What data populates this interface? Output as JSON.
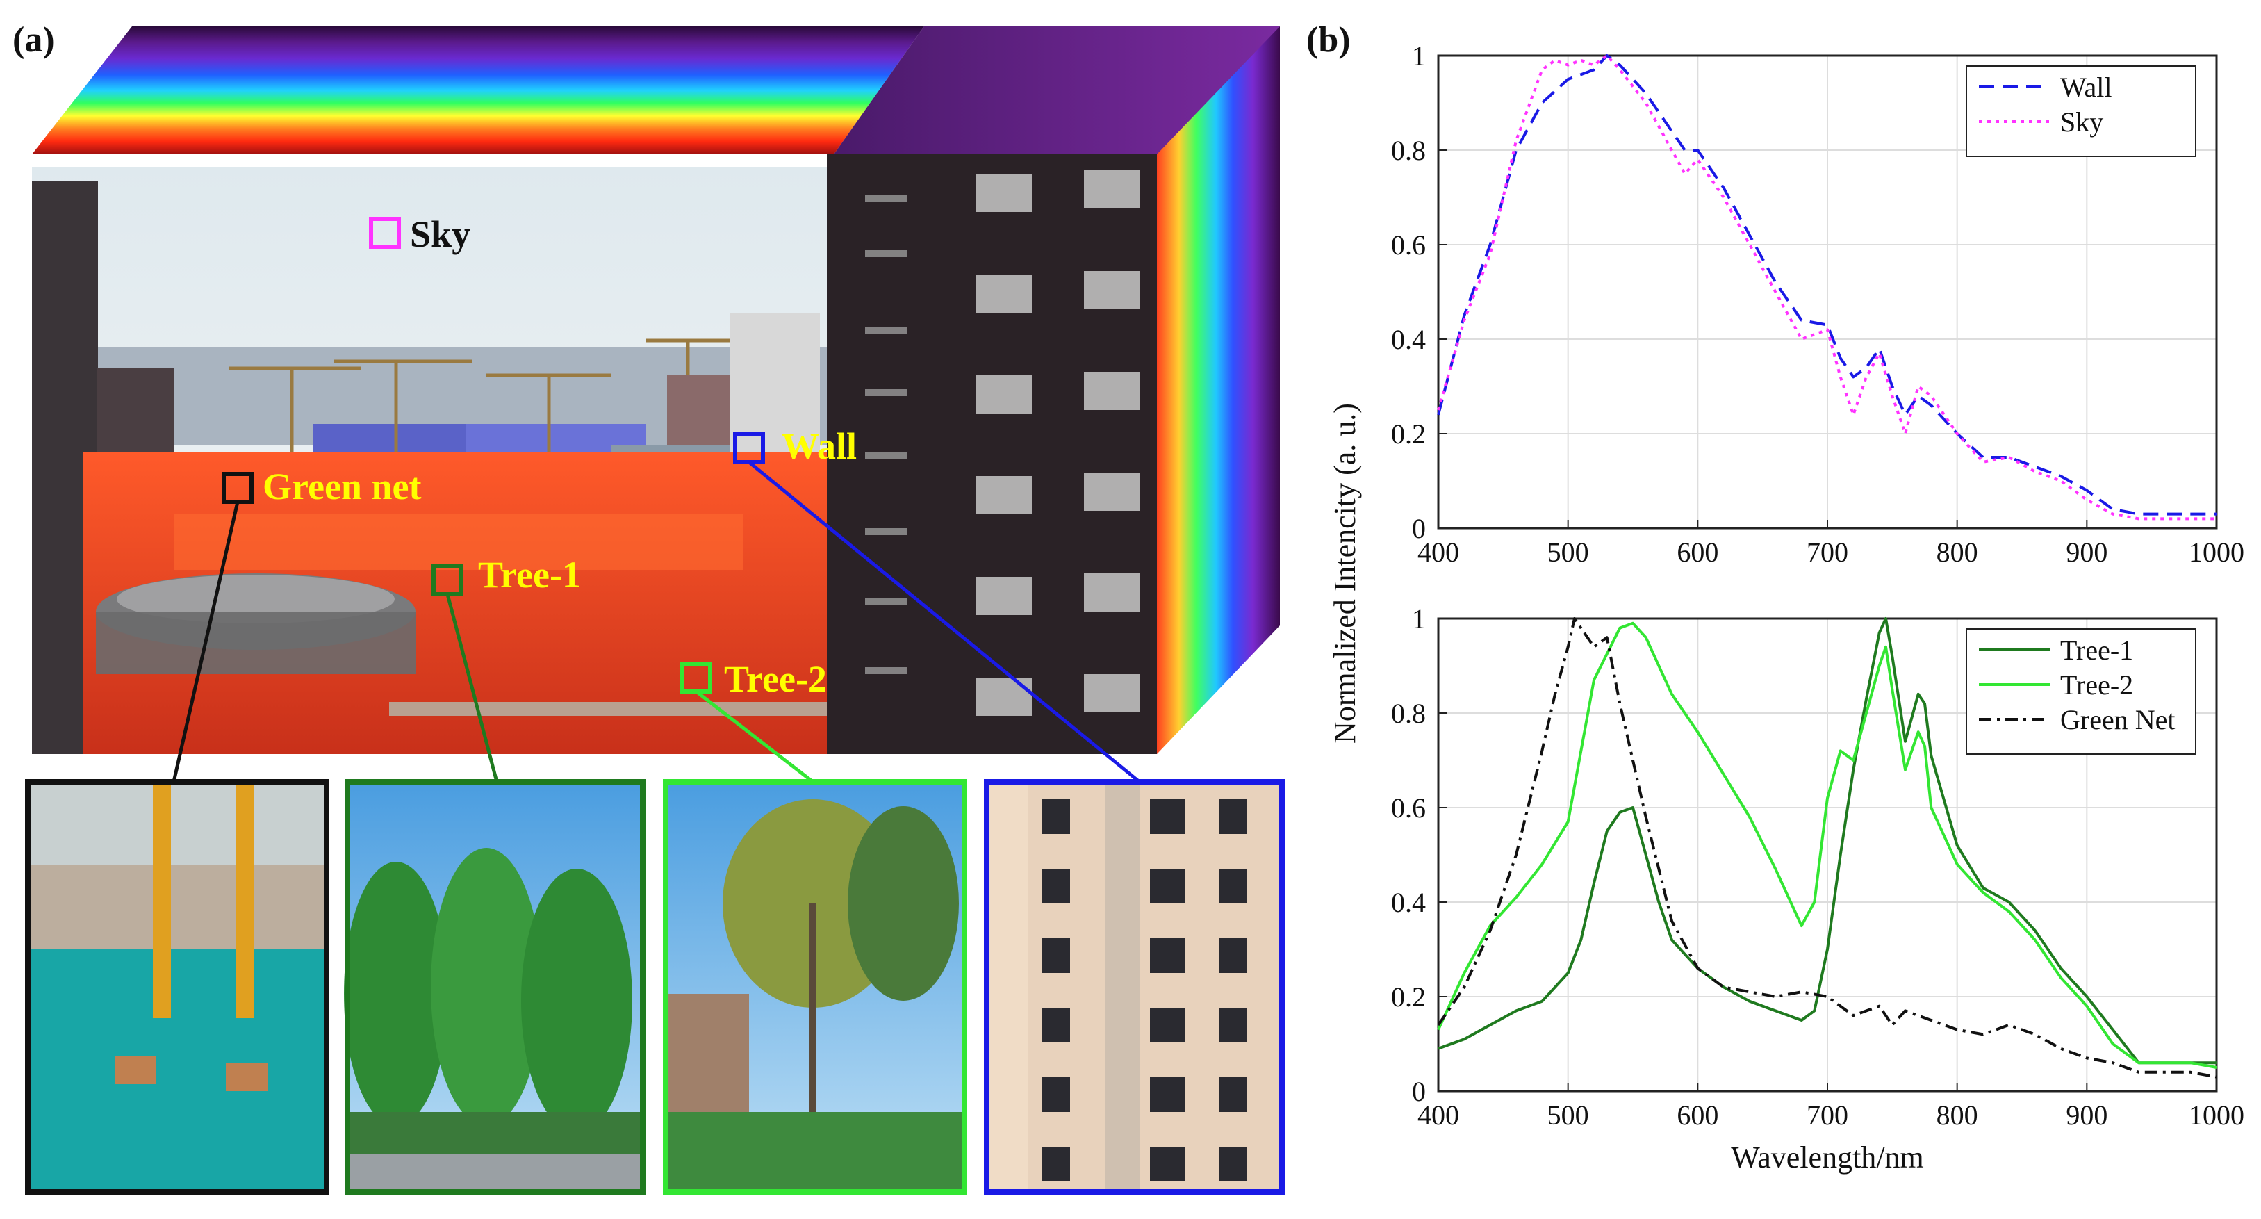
{
  "panels": {
    "a_label": "(a)",
    "b_label": "(b)"
  },
  "roi_labels": {
    "sky": "Sky",
    "wall": "Wall",
    "green_net": "Green net",
    "tree1": "Tree-1",
    "tree2": "Tree-2"
  },
  "colors": {
    "sky_box": "#ff33ff",
    "wall_box": "#1a1ae6",
    "green_net_box": "#111111",
    "tree1_box": "#1f7a1f",
    "tree2_box": "#33e633",
    "label_yellow": "#ffff00"
  },
  "chart_data": [
    {
      "type": "line",
      "xlabel": "",
      "ylabel": "",
      "xlim": [
        400,
        1000
      ],
      "ylim": [
        0,
        1
      ],
      "xticks": [
        "400",
        "500",
        "600",
        "700",
        "800",
        "900",
        "1000"
      ],
      "yticks": [
        "0",
        "0.2",
        "0.4",
        "0.6",
        "0.8",
        "1"
      ],
      "grid": true,
      "legend_position": "top-right",
      "series": [
        {
          "name": "Wall",
          "color": "#1a1ae6",
          "dash": "dashed",
          "x": [
            400,
            420,
            440,
            460,
            480,
            500,
            510,
            520,
            530,
            540,
            560,
            580,
            590,
            600,
            620,
            640,
            660,
            680,
            700,
            710,
            720,
            730,
            740,
            750,
            760,
            770,
            780,
            800,
            820,
            840,
            860,
            880,
            900,
            920,
            940,
            960,
            980,
            1000
          ],
          "y": [
            0.24,
            0.45,
            0.6,
            0.8,
            0.9,
            0.95,
            0.96,
            0.97,
            1.0,
            0.98,
            0.92,
            0.84,
            0.8,
            0.8,
            0.72,
            0.62,
            0.52,
            0.44,
            0.43,
            0.36,
            0.32,
            0.34,
            0.38,
            0.3,
            0.24,
            0.28,
            0.26,
            0.2,
            0.15,
            0.15,
            0.13,
            0.11,
            0.08,
            0.04,
            0.03,
            0.03,
            0.03,
            0.03
          ]
        },
        {
          "name": "Sky",
          "color": "#ff33ff",
          "dash": "dotted",
          "x": [
            400,
            420,
            440,
            460,
            480,
            490,
            500,
            510,
            520,
            530,
            540,
            560,
            580,
            590,
            600,
            620,
            640,
            660,
            680,
            700,
            710,
            720,
            730,
            740,
            750,
            760,
            770,
            780,
            800,
            820,
            840,
            860,
            880,
            900,
            920,
            940,
            960,
            980,
            1000
          ],
          "y": [
            0.25,
            0.44,
            0.58,
            0.82,
            0.97,
            0.99,
            0.98,
            0.99,
            0.98,
            1.0,
            0.97,
            0.9,
            0.8,
            0.75,
            0.78,
            0.7,
            0.6,
            0.5,
            0.4,
            0.42,
            0.32,
            0.24,
            0.32,
            0.37,
            0.28,
            0.2,
            0.3,
            0.28,
            0.2,
            0.14,
            0.15,
            0.12,
            0.1,
            0.06,
            0.03,
            0.02,
            0.02,
            0.02,
            0.02
          ]
        }
      ]
    },
    {
      "type": "line",
      "xlabel": "Wavelength/nm",
      "ylabel": "Normalized Intencity (a. u.)",
      "xlim": [
        400,
        1000
      ],
      "ylim": [
        0,
        1
      ],
      "xticks": [
        "400",
        "500",
        "600",
        "700",
        "800",
        "900",
        "1000"
      ],
      "yticks": [
        "0",
        "0.2",
        "0.4",
        "0.6",
        "0.8",
        "1"
      ],
      "grid": true,
      "legend_position": "top-right",
      "series": [
        {
          "name": "Tree-1",
          "color": "#1f7a1f",
          "dash": "solid",
          "x": [
            400,
            420,
            440,
            460,
            480,
            500,
            510,
            520,
            530,
            540,
            550,
            560,
            570,
            580,
            600,
            620,
            640,
            660,
            680,
            690,
            700,
            710,
            720,
            730,
            740,
            745,
            750,
            760,
            770,
            775,
            780,
            800,
            820,
            840,
            860,
            880,
            900,
            920,
            940,
            960,
            980,
            1000
          ],
          "y": [
            0.09,
            0.11,
            0.14,
            0.17,
            0.19,
            0.25,
            0.32,
            0.44,
            0.55,
            0.59,
            0.6,
            0.5,
            0.4,
            0.32,
            0.26,
            0.22,
            0.19,
            0.17,
            0.15,
            0.17,
            0.3,
            0.5,
            0.68,
            0.83,
            0.97,
            1.0,
            0.92,
            0.74,
            0.84,
            0.82,
            0.71,
            0.52,
            0.43,
            0.4,
            0.34,
            0.26,
            0.2,
            0.13,
            0.06,
            0.06,
            0.06,
            0.06
          ]
        },
        {
          "name": "Tree-2",
          "color": "#33e633",
          "dash": "solid",
          "x": [
            400,
            420,
            440,
            460,
            480,
            500,
            520,
            540,
            550,
            560,
            580,
            600,
            620,
            640,
            660,
            680,
            690,
            700,
            710,
            720,
            730,
            740,
            745,
            750,
            760,
            770,
            775,
            780,
            800,
            820,
            840,
            860,
            880,
            900,
            920,
            940,
            960,
            980,
            1000
          ],
          "y": [
            0.13,
            0.25,
            0.35,
            0.41,
            0.48,
            0.57,
            0.87,
            0.98,
            0.99,
            0.96,
            0.84,
            0.76,
            0.67,
            0.58,
            0.47,
            0.35,
            0.4,
            0.62,
            0.72,
            0.7,
            0.8,
            0.9,
            0.94,
            0.85,
            0.68,
            0.76,
            0.73,
            0.6,
            0.48,
            0.42,
            0.38,
            0.32,
            0.24,
            0.18,
            0.1,
            0.06,
            0.06,
            0.06,
            0.05
          ]
        },
        {
          "name": "Green Net",
          "color": "#111111",
          "dash": "dashdot",
          "x": [
            400,
            420,
            440,
            460,
            480,
            490,
            500,
            505,
            510,
            520,
            530,
            540,
            560,
            580,
            600,
            620,
            640,
            660,
            680,
            700,
            720,
            740,
            750,
            760,
            780,
            800,
            820,
            840,
            860,
            880,
            900,
            920,
            940,
            960,
            980,
            1000
          ],
          "y": [
            0.14,
            0.22,
            0.34,
            0.5,
            0.72,
            0.84,
            0.94,
            1.0,
            0.98,
            0.94,
            0.96,
            0.82,
            0.58,
            0.36,
            0.26,
            0.22,
            0.21,
            0.2,
            0.21,
            0.2,
            0.16,
            0.18,
            0.14,
            0.17,
            0.15,
            0.13,
            0.12,
            0.14,
            0.12,
            0.09,
            0.07,
            0.06,
            0.04,
            0.04,
            0.04,
            0.03
          ]
        }
      ]
    }
  ]
}
